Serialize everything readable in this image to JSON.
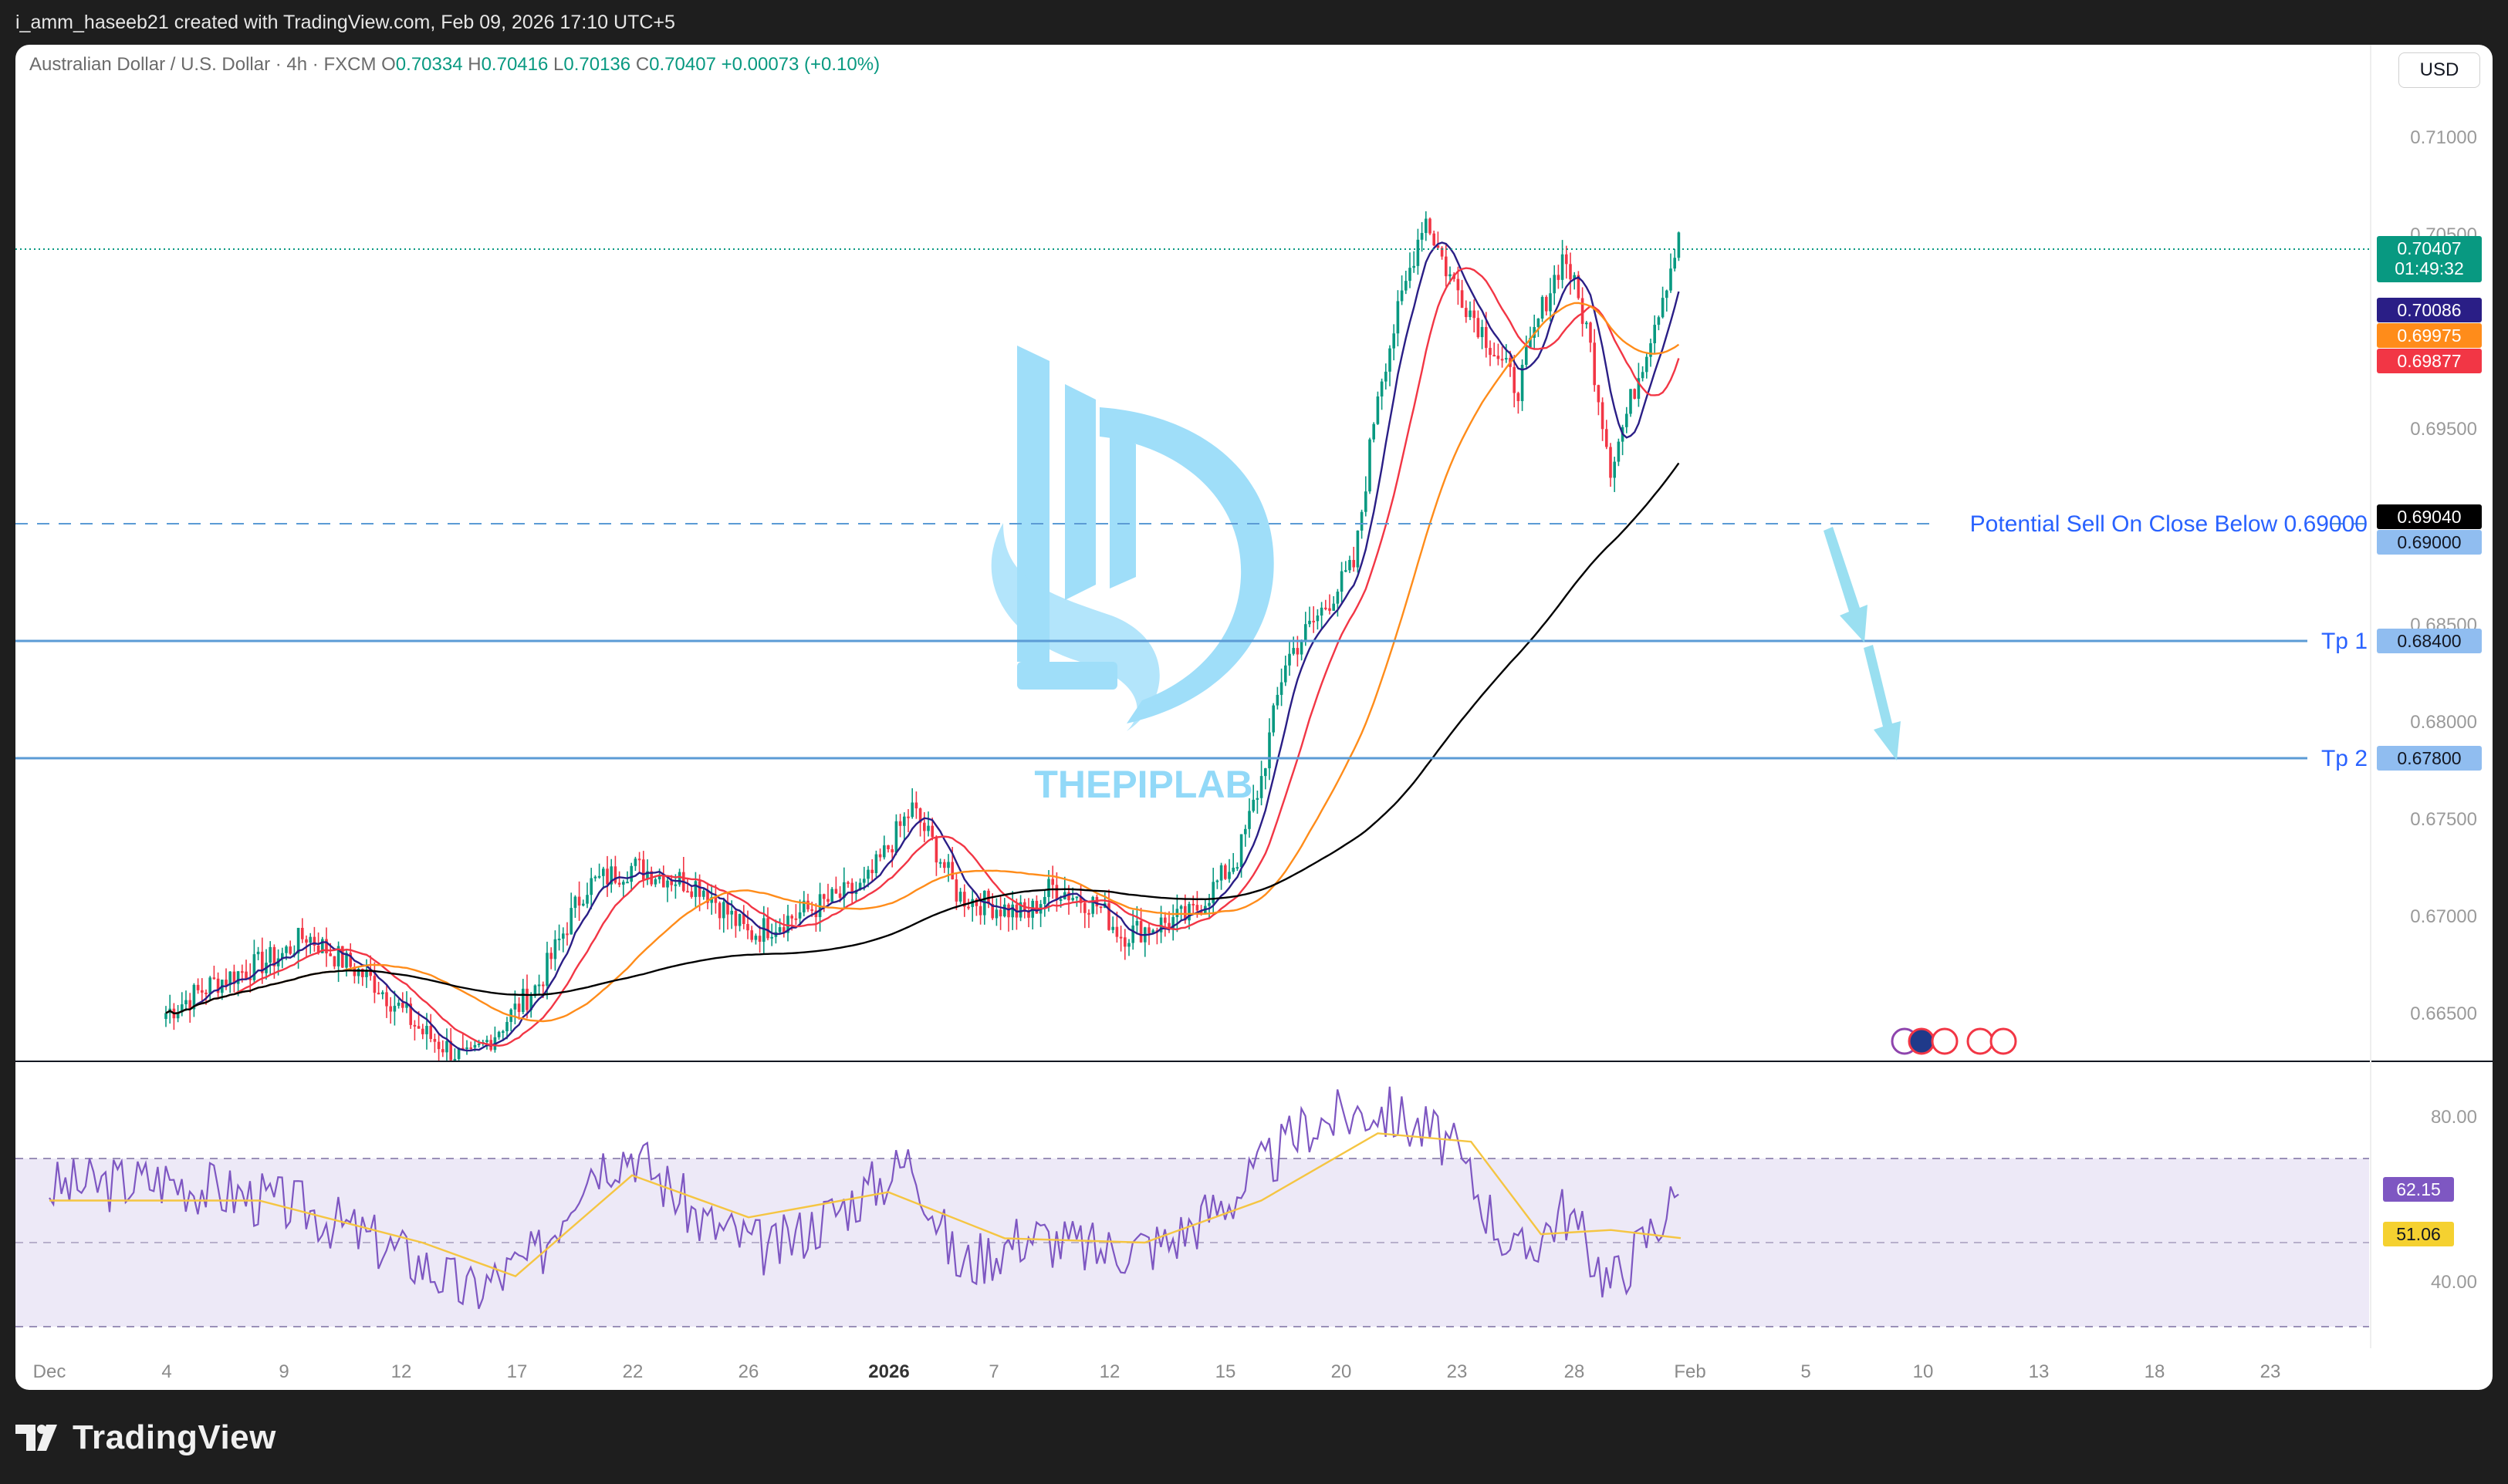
{
  "header": {
    "caption": "i_amm_haseeb21 created with TradingView.com, Feb 09, 2026 17:10 UTC+5"
  },
  "legend": {
    "symbol": "Australian Dollar / U.S. Dollar · 4h · FXCM",
    "o_label": "O",
    "o_value": "0.70334",
    "h_label": "H",
    "h_value": "0.70416",
    "l_label": "L",
    "l_value": "0.70136",
    "c_label": "C",
    "c_value": "0.70407",
    "change": "+0.00073 (+0.10%)"
  },
  "currency_button": "USD",
  "watermark": {
    "text": "THEPIPLAB"
  },
  "price_axis": {
    "ticks": [
      "0.71000",
      "0.70500",
      "0.69500",
      "0.68500",
      "0.68000",
      "0.67500",
      "0.67000",
      "0.66500"
    ],
    "badges": {
      "last": "0.70407",
      "countdown": "01:49:32",
      "ma_blue": "0.70086",
      "ma_orange": "0.69975",
      "ma_red": "0.69877",
      "ma_black": "0.69040",
      "level_sell": "0.69000",
      "tp1": "0.68400",
      "tp2": "0.67800"
    }
  },
  "annotations": {
    "sell": "Potential Sell On Close Below 0.69000",
    "tp1": "Tp 1",
    "tp2": "Tp 2"
  },
  "rsi_axis": {
    "ticks": [
      "80.00",
      "40.00"
    ],
    "rsi_value": "62.15",
    "rsi_ma_value": "51.06"
  },
  "time_axis": {
    "labels": [
      "Dec",
      "4",
      "9",
      "12",
      "17",
      "22",
      "26",
      "2026",
      "7",
      "12",
      "15",
      "20",
      "23",
      "28",
      "Feb",
      "5",
      "10",
      "13",
      "18",
      "23"
    ]
  },
  "footer": {
    "brand": "TradingView"
  },
  "colors": {
    "up": "#089981",
    "down": "#f23645",
    "ma_blue": "#2a1e86",
    "ma_red": "#f23645",
    "ma_orange": "#ff8c1a",
    "ma_black": "#000000",
    "rsi": "#7e57c2",
    "rsi_ma": "#f5c542",
    "level_line": "#5b9bd5",
    "arrow": "#8fdcef",
    "watermark": "#7fd3f7"
  },
  "chart_data": [
    {
      "type": "candlestick",
      "title": "Australian Dollar / U.S. Dollar · 4h · FXCM",
      "y_axis_range": [
        0.6625,
        0.7125
      ],
      "x_axis_range": [
        "Dec",
        "Feb 23"
      ],
      "ohlc_last": {
        "open": 0.70334,
        "high": 0.70416,
        "low": 0.70136,
        "close": 0.70407
      },
      "price_path": [
        [
          "Dec 6",
          0.664
        ],
        [
          "Dec 8",
          0.6655
        ],
        [
          "Dec 11",
          0.667
        ],
        [
          "Dec 12",
          0.668
        ],
        [
          "Dec 15",
          0.6655
        ],
        [
          "Dec 17",
          0.663
        ],
        [
          "Dec 19",
          0.6615
        ],
        [
          "Dec 22",
          0.6655
        ],
        [
          "Dec 24",
          0.6705
        ],
        [
          "Dec 26",
          0.6715
        ],
        [
          "Dec 29",
          0.6705
        ],
        [
          "Dec 31",
          0.668
        ],
        [
          "Jan 2",
          0.669
        ],
        [
          "Jan 5",
          0.6705
        ],
        [
          "Jan 7",
          0.6745
        ],
        [
          "Jan 8",
          0.6725
        ],
        [
          "Jan 9",
          0.67
        ],
        [
          "Jan 12",
          0.669
        ],
        [
          "Jan 13",
          0.6705
        ],
        [
          "Jan 15",
          0.6695
        ],
        [
          "Jan 16",
          0.668
        ],
        [
          "Jan 19",
          0.669
        ],
        [
          "Jan 20",
          0.6705
        ],
        [
          "Jan 21",
          0.672
        ],
        [
          "Jan 22",
          0.676
        ],
        [
          "Jan 23",
          0.682
        ],
        [
          "Jan 26",
          0.687
        ],
        [
          "Jan 27",
          0.696
        ],
        [
          "Jan 29",
          0.705
        ],
        [
          "Jan 30",
          0.702
        ],
        [
          "Feb 2",
          0.696
        ],
        [
          "Feb 3",
          0.7
        ],
        [
          "Feb 4",
          0.703
        ],
        [
          "Feb 5",
          0.699
        ],
        [
          "Feb 6",
          0.692
        ],
        [
          "Feb 9",
          0.70407
        ]
      ],
      "series": [
        {
          "name": "MA",
          "last": 0.70086
        },
        {
          "name": "MA",
          "last": 0.69975
        },
        {
          "name": "MA",
          "last": 0.69877
        },
        {
          "name": "MA",
          "last": 0.6904
        }
      ],
      "levels": [
        {
          "label": "Potential Sell On Close Below 0.69000",
          "value": 0.69,
          "style": "dashed"
        },
        {
          "label": "Tp 1",
          "value": 0.684,
          "style": "solid"
        },
        {
          "label": "Tp 2",
          "value": 0.678,
          "style": "solid"
        }
      ],
      "grid": false
    },
    {
      "type": "line",
      "title": "RSI",
      "y_ticks": [
        80,
        40
      ],
      "bands": [
        30,
        50,
        70
      ],
      "series": [
        {
          "name": "RSI",
          "last": 62.15,
          "points": [
            [
              "Dec 1",
              63
            ],
            [
              "Dec 6",
              65
            ],
            [
              "Dec 12",
              58
            ],
            [
              "Dec 17",
              45
            ],
            [
              "Dec 19",
              38
            ],
            [
              "Dec 22",
              47
            ],
            [
              "Dec 24",
              68
            ],
            [
              "Dec 26",
              72
            ],
            [
              "Dec 29",
              55
            ],
            [
              "Jan 1",
              48
            ],
            [
              "Jan 5",
              62
            ],
            [
              "Jan 7",
              70
            ],
            [
              "Jan 9",
              44
            ],
            [
              "Jan 12",
              52
            ],
            [
              "Jan 15",
              48
            ],
            [
              "Jan 18",
              50
            ],
            [
              "Jan 21",
              62
            ],
            [
              "Jan 24",
              78
            ],
            [
              "Jan 27",
              82
            ],
            [
              "Jan 30",
              74
            ],
            [
              "Feb 2",
              46
            ],
            [
              "Feb 4",
              58
            ],
            [
              "Feb 6",
              40
            ],
            [
              "Feb 9",
              62.15
            ]
          ]
        },
        {
          "name": "RSI-based MA",
          "last": 51.06,
          "points": [
            [
              "Dec 1",
              60
            ],
            [
              "Dec 10",
              60
            ],
            [
              "Dec 17",
              50
            ],
            [
              "Dec 21",
              42
            ],
            [
              "Dec 26",
              66
            ],
            [
              "Dec 31",
              56
            ],
            [
              "Jan 6",
              62
            ],
            [
              "Jan 11",
              51
            ],
            [
              "Jan 17",
              50
            ],
            [
              "Jan 22",
              60
            ],
            [
              "Jan 27",
              76
            ],
            [
              "Jan 31",
              74
            ],
            [
              "Feb 3",
              52
            ],
            [
              "Feb 6",
              53
            ],
            [
              "Feb 9",
              51.06
            ]
          ]
        }
      ]
    }
  ]
}
